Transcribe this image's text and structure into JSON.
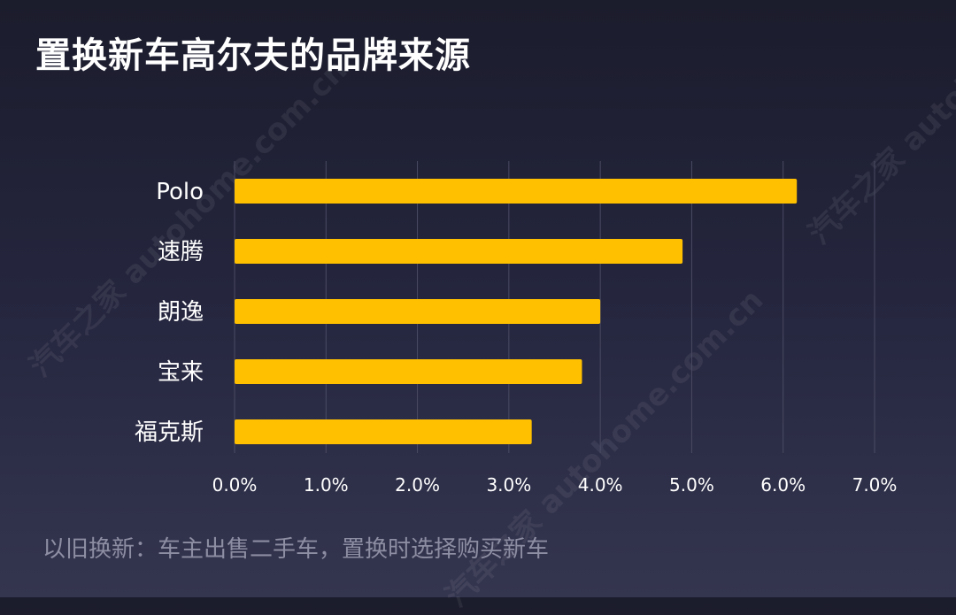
{
  "title": "置换新车高尔夫的品牌来源",
  "note": "以旧换新：车主出售二手车，置换时选择购买新车",
  "watermark": "汽车之家 autohome.com.cn",
  "colors": {
    "bar": "#ffc000",
    "grid": "#4a4b63",
    "axis_text": "#ffffff"
  },
  "chart_data": {
    "type": "bar",
    "orientation": "horizontal",
    "categories": [
      "Polo",
      "速腾",
      "朗逸",
      "宝来",
      "福克斯"
    ],
    "values": [
      6.15,
      4.9,
      4.0,
      3.8,
      3.25
    ],
    "unit": "%",
    "xlim": [
      0,
      7
    ],
    "xticks": [
      "0.0%",
      "1.0%",
      "2.0%",
      "3.0%",
      "4.0%",
      "5.0%",
      "6.0%",
      "7.0%"
    ],
    "grid": true,
    "legend": "none"
  }
}
